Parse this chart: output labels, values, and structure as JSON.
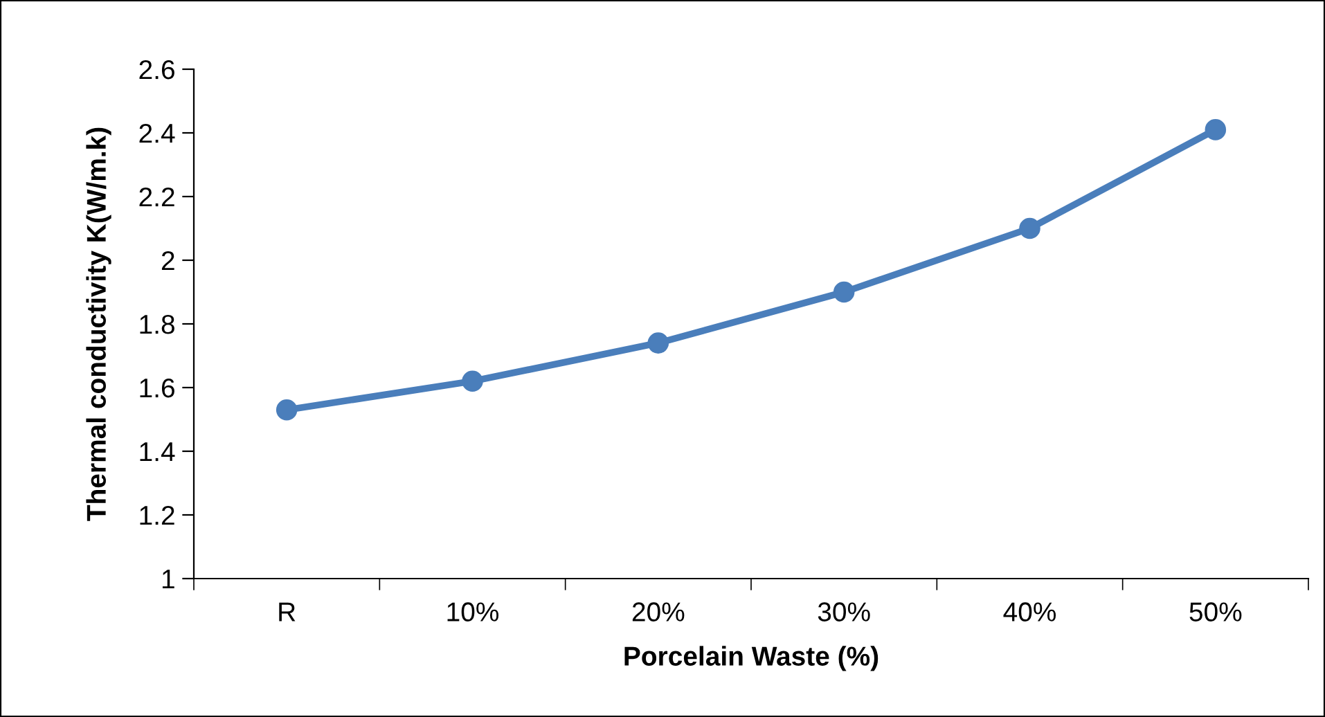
{
  "chart_data": {
    "type": "line",
    "xlabel": "Porcelain Waste (%)",
    "ylabel": "Thermal conductivity K(W/m.k)",
    "categories": [
      "R",
      "10%",
      "20%",
      "30%",
      "40%",
      "50%"
    ],
    "series": [
      {
        "color": "#4a7ebb",
        "values": [
          1.53,
          1.62,
          1.74,
          1.9,
          2.1,
          2.41
        ]
      }
    ],
    "ylim": [
      1,
      2.6
    ],
    "yticks": [
      1,
      1.2,
      1.4,
      1.6,
      1.8,
      2,
      2.2,
      2.4,
      2.6
    ],
    "grid": false,
    "legend": false,
    "marker": "circle",
    "line_style": "solid"
  }
}
